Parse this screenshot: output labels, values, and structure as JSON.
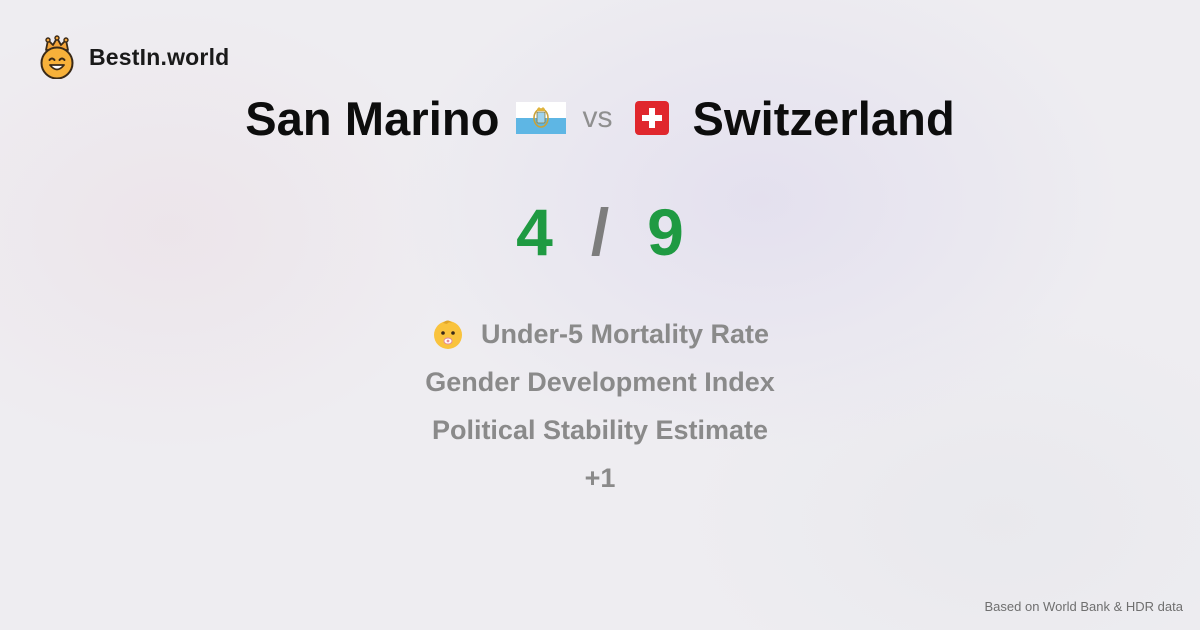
{
  "brand": {
    "name": "BestIn.world",
    "logo_icon": "crowned-smiley-icon"
  },
  "comparison": {
    "left_country": "San Marino",
    "left_flag_icon": "san-marino-flag-icon",
    "vs_label": "vs",
    "right_country": "Switzerland",
    "right_flag_icon": "switzerland-flag-icon"
  },
  "score": {
    "left": "4",
    "separator": "/",
    "right": "9",
    "color": "#1f9a42"
  },
  "criteria": [
    {
      "label": "Under-5 Mortality Rate",
      "icon": "baby-icon"
    },
    {
      "label": "Gender Development Index"
    },
    {
      "label": "Political Stability Estimate"
    },
    {
      "label": "+1"
    }
  ],
  "footer": {
    "source": "Based on World Bank & HDR data"
  }
}
